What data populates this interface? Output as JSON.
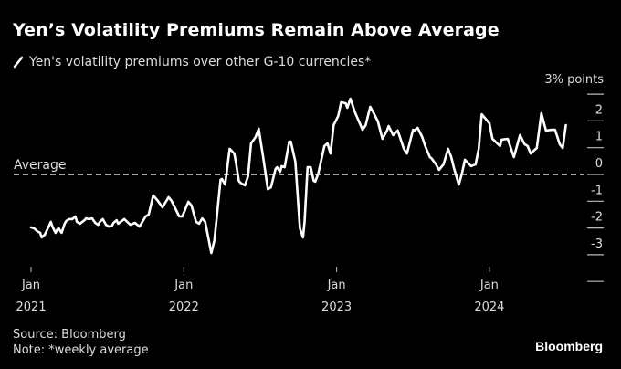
{
  "header": {
    "title": "Yen’s Volatility Premiums Remain Above Average",
    "legend_label": "Yen's volatility premiums over other G-10 currencies*",
    "unit_label": "3% points"
  },
  "footer": {
    "source": "Source: Bloomberg",
    "note": "Note: *weekly average",
    "logo": "Bloomberg"
  },
  "colors": {
    "background": "#000000",
    "line": "#ffffff",
    "text": "#dddddd"
  },
  "chart_data": {
    "type": "line",
    "title": "Yen’s Volatility Premiums Remain Above Average",
    "xlabel": "",
    "ylabel": "% points",
    "ylim": [
      -4,
      3
    ],
    "xlim": [
      2021.0,
      2024.6
    ],
    "grid": false,
    "legend_position": "top-left",
    "y_ticks": [
      3,
      2,
      1,
      0,
      -1,
      -2,
      -3,
      -4
    ],
    "y_tick_labels": [
      "2",
      "1",
      "0",
      "-1",
      "-2",
      "-3"
    ],
    "x_ticks": [
      {
        "value": 2021.0,
        "label_line1": "Jan",
        "label_line2": "2021"
      },
      {
        "value": 2022.0,
        "label_line1": "Jan",
        "label_line2": "2022"
      },
      {
        "value": 2023.0,
        "label_line1": "Jan",
        "label_line2": "2023"
      },
      {
        "value": 2024.0,
        "label_line1": "Jan",
        "label_line2": "2024"
      }
    ],
    "annotations": [
      {
        "type": "hline",
        "value": 0,
        "label": "Average",
        "style": "dashed"
      }
    ],
    "series": [
      {
        "name": "Yen's volatility premiums over other G-10 currencies*",
        "x": [
          2021.0,
          2021.02,
          2021.04,
          2021.06,
          2021.07,
          2021.09,
          2021.11,
          2021.13,
          2021.14,
          2021.16,
          2021.17,
          2021.18,
          2021.2,
          2021.22,
          2021.23,
          2021.25,
          2021.27,
          2021.29,
          2021.3,
          2021.32,
          2021.35,
          2021.36,
          2021.38,
          2021.4,
          2021.42,
          2021.44,
          2021.45,
          2021.47,
          2021.49,
          2021.51,
          2021.53,
          2021.54,
          2021.56,
          2021.57,
          2021.61,
          2021.65,
          2021.68,
          2021.71,
          2021.75,
          2021.77,
          2021.8,
          2021.83,
          2021.86,
          2021.9,
          2021.92,
          2021.97,
          2021.99,
          2022.03,
          2022.05,
          2022.08,
          2022.1,
          2022.12,
          2022.14,
          2022.18,
          2022.2,
          2022.24,
          2022.25,
          2022.27,
          2022.3,
          2022.33,
          2022.34,
          2022.36,
          2022.37,
          2022.4,
          2022.42,
          2022.44,
          2022.47,
          2022.49,
          2022.52,
          2022.55,
          2022.57,
          2022.6,
          2022.61,
          2022.63,
          2022.64,
          2022.66,
          2022.69,
          2022.7,
          2022.73,
          2022.76,
          2022.78,
          2022.79,
          2022.81,
          2022.83,
          2022.85,
          2022.86,
          2022.88,
          2022.92,
          2022.94,
          2022.96,
          2022.98,
          2023.01,
          2023.03,
          2023.06,
          2023.07,
          2023.09,
          2023.12,
          2023.17,
          2023.19,
          2023.22,
          2023.24,
          2023.27,
          2023.3,
          2023.33,
          2023.34,
          2023.37,
          2023.4,
          2023.41,
          2023.44,
          2023.46,
          2023.5,
          2023.51,
          2023.53,
          2023.56,
          2023.58,
          2023.61,
          2023.62,
          2023.65,
          2023.67,
          2023.7,
          2023.73,
          2023.75,
          2023.77,
          2023.8,
          2023.82,
          2023.84,
          2023.88,
          2023.91,
          2023.93,
          2023.95,
          2024.0,
          2024.02,
          2024.07,
          2024.08,
          2024.12,
          2024.16,
          2024.2,
          2024.23,
          2024.25,
          2024.27,
          2024.31,
          2024.34,
          2024.37,
          2024.41,
          2024.43,
          2024.46,
          2024.48,
          2024.5
        ],
        "values": [
          -1.98,
          -2.01,
          -2.12,
          -2.18,
          -2.35,
          -2.25,
          -2.01,
          -1.77,
          -1.95,
          -2.18,
          -2.08,
          -2.01,
          -2.18,
          -1.84,
          -1.74,
          -1.67,
          -1.67,
          -1.57,
          -1.77,
          -1.84,
          -1.71,
          -1.64,
          -1.67,
          -1.64,
          -1.81,
          -1.88,
          -1.77,
          -1.67,
          -1.88,
          -1.95,
          -1.91,
          -1.81,
          -1.71,
          -1.84,
          -1.67,
          -1.88,
          -1.81,
          -1.95,
          -1.57,
          -1.5,
          -0.78,
          -0.99,
          -1.23,
          -0.85,
          -0.99,
          -1.57,
          -1.57,
          -1.02,
          -1.16,
          -1.77,
          -1.84,
          -1.64,
          -1.77,
          -2.94,
          -2.46,
          -0.2,
          -0.17,
          -0.38,
          0.96,
          0.78,
          0.48,
          -0.24,
          -0.31,
          -0.41,
          -0.07,
          1.16,
          1.4,
          1.71,
          0.61,
          -0.55,
          -0.48,
          0.2,
          0.27,
          0.1,
          0.31,
          0.27,
          1.23,
          1.23,
          0.48,
          -2.01,
          -2.35,
          -1.77,
          0.27,
          0.27,
          -0.24,
          -0.27,
          0.03,
          1.06,
          1.16,
          0.78,
          1.84,
          2.18,
          2.7,
          2.66,
          2.49,
          2.83,
          2.32,
          1.67,
          1.84,
          2.53,
          2.32,
          1.98,
          1.33,
          1.64,
          1.81,
          1.47,
          1.64,
          1.47,
          0.96,
          0.78,
          1.67,
          1.64,
          1.74,
          1.4,
          1.06,
          0.65,
          0.61,
          0.38,
          0.17,
          0.38,
          0.96,
          0.65,
          0.2,
          -0.38,
          0.03,
          0.55,
          0.31,
          0.38,
          0.96,
          2.25,
          1.91,
          1.33,
          1.06,
          1.3,
          1.33,
          0.65,
          1.47,
          1.13,
          1.06,
          0.78,
          0.99,
          2.29,
          1.64,
          1.67,
          1.67,
          1.13,
          0.99,
          1.84
        ]
      }
    ]
  }
}
